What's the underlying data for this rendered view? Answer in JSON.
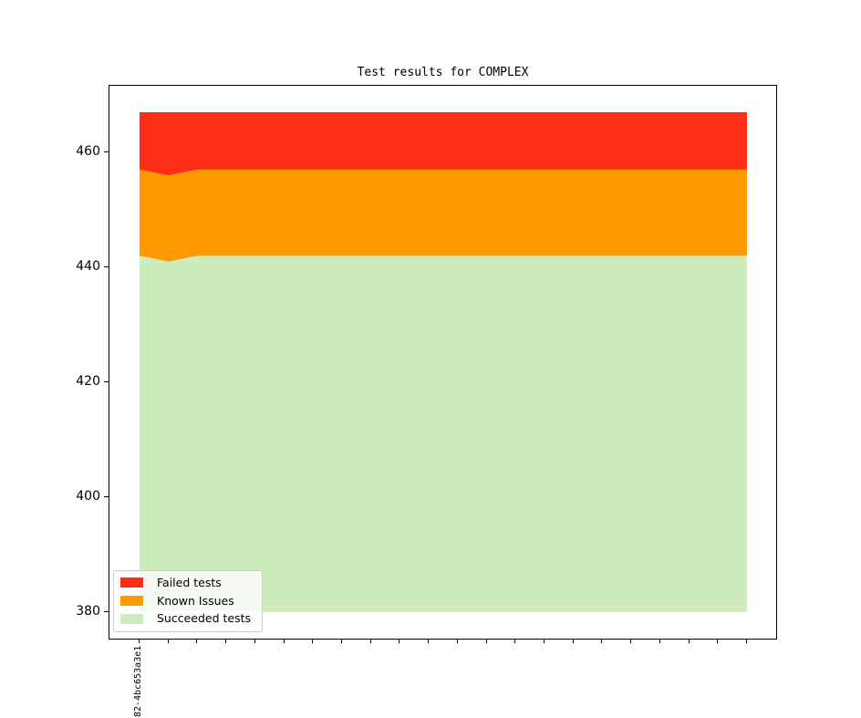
{
  "chart_data": {
    "type": "area",
    "stacked": true,
    "title": "Test results for COMPLEX",
    "n_points": 22,
    "x_tick_labels": [
      "82-4bc653a3e1",
      "",
      "",
      "",
      "",
      "",
      "",
      "",
      "",
      "",
      "",
      "",
      "",
      "",
      "",
      "",
      "",
      "",
      "",
      "",
      "",
      ""
    ],
    "yticks": [
      380,
      400,
      420,
      440,
      460
    ],
    "ylim": [
      375.2,
      471.6
    ],
    "area_baseline": 380,
    "stack_order_bottom_to_top": [
      "Succeeded tests",
      "Known Issues",
      "Failed tests"
    ],
    "series": [
      {
        "name": "Failed tests",
        "color": "#fd2d16",
        "values": [
          10,
          11,
          10,
          10,
          10,
          10,
          10,
          10,
          10,
          10,
          10,
          10,
          10,
          10,
          10,
          10,
          10,
          10,
          10,
          10,
          10,
          10
        ]
      },
      {
        "name": "Known Issues",
        "color": "#ff9a01",
        "values": [
          15,
          15,
          15,
          15,
          15,
          15,
          15,
          15,
          15,
          15,
          15,
          15,
          15,
          15,
          15,
          15,
          15,
          15,
          15,
          15,
          15,
          15
        ]
      },
      {
        "name": "Succeeded tests",
        "color": "#cdebbd",
        "values": [
          442,
          441,
          442,
          442,
          442,
          442,
          442,
          442,
          442,
          442,
          442,
          442,
          442,
          442,
          442,
          442,
          442,
          442,
          442,
          442,
          442,
          442
        ]
      }
    ],
    "legend": {
      "position": "lower left"
    }
  },
  "colors": {
    "background": "#ffffff",
    "spine": "#000000",
    "tick": "#000000",
    "legend_border": "#cccccc"
  }
}
